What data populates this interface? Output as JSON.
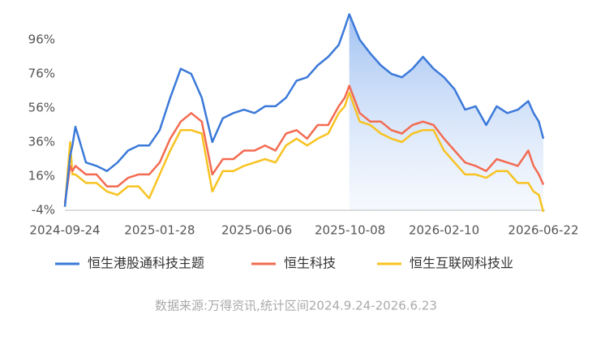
{
  "chart_data": {
    "type": "line",
    "x": [
      "2024-09-24",
      "2024-10-01",
      "2024-10-04",
      "2024-10-08",
      "2024-10-22",
      "2024-11-05",
      "2024-11-19",
      "2024-12-03",
      "2024-12-17",
      "2024-12-31",
      "2025-01-14",
      "2025-01-28",
      "2025-02-11",
      "2025-02-25",
      "2025-03-11",
      "2025-03-25",
      "2025-04-08",
      "2025-04-22",
      "2025-05-06",
      "2025-05-20",
      "2025-06-03",
      "2025-06-17",
      "2025-07-01",
      "2025-07-15",
      "2025-07-29",
      "2025-08-12",
      "2025-08-26",
      "2025-09-09",
      "2025-09-23",
      "2025-10-01",
      "2025-10-07",
      "2025-10-21",
      "2025-11-04",
      "2025-11-18",
      "2025-12-02",
      "2025-12-16",
      "2025-12-30",
      "2026-01-13",
      "2026-01-27",
      "2026-02-10",
      "2026-02-24",
      "2026-03-10",
      "2026-03-24",
      "2026-04-07",
      "2026-04-21",
      "2026-05-05",
      "2026-05-19",
      "2026-06-02",
      "2026-06-09",
      "2026-06-16",
      "2026-06-22"
    ],
    "series": [
      {
        "name": "恒生港股通科技主题",
        "color": "#3b79d9",
        "values": [
          -2,
          28,
          34,
          45,
          24,
          22,
          19,
          24,
          31,
          34,
          34,
          43,
          62,
          79,
          76,
          62,
          36,
          50,
          53,
          55,
          53,
          57,
          57,
          62,
          72,
          74,
          81,
          86,
          93,
          103,
          111,
          96,
          88,
          81,
          76,
          74,
          79,
          86,
          79,
          74,
          67,
          55,
          57,
          46,
          57,
          53,
          55,
          60,
          53,
          48,
          38
        ]
      },
      {
        "name": "恒生科技",
        "color": "#f36b51",
        "values": [
          0,
          22,
          19,
          22,
          17,
          17,
          10,
          10,
          15,
          17,
          17,
          24,
          38,
          48,
          53,
          48,
          17,
          26,
          26,
          31,
          31,
          34,
          31,
          41,
          43,
          38,
          46,
          46,
          57,
          62,
          69,
          53,
          48,
          48,
          43,
          41,
          46,
          48,
          46,
          38,
          31,
          24,
          22,
          19,
          26,
          24,
          22,
          31,
          22,
          17,
          11
        ]
      },
      {
        "name": "恒生互联网科技业",
        "color": "#f8c322",
        "values": [
          -2,
          36,
          17,
          17,
          12,
          12,
          7,
          5,
          10,
          10,
          3,
          17,
          31,
          43,
          43,
          41,
          7,
          19,
          19,
          22,
          24,
          26,
          24,
          34,
          38,
          34,
          38,
          41,
          53,
          57,
          65,
          48,
          46,
          41,
          38,
          36,
          41,
          43,
          43,
          31,
          24,
          17,
          17,
          15,
          19,
          19,
          12,
          12,
          7,
          5,
          -5
        ]
      }
    ],
    "xlim": [
      "2024-09-24",
      "2026-06-22"
    ],
    "xticks": [
      "2024-09-24",
      "2025-01-28",
      "2025-06-06",
      "2025-10-08",
      "2026-02-10",
      "2026-06-22"
    ],
    "ylim": [
      -4,
      112
    ],
    "yticks": [
      {
        "value": -4,
        "label": "-4%"
      },
      {
        "value": 16,
        "label": "16%"
      },
      {
        "value": 36,
        "label": "36%"
      },
      {
        "value": 56,
        "label": "56%"
      },
      {
        "value": 76,
        "label": "76%"
      },
      {
        "value": 96,
        "label": "96%"
      }
    ],
    "source": "数据来源:万得资讯,统计区间2024.9.24-2026.6.23"
  }
}
